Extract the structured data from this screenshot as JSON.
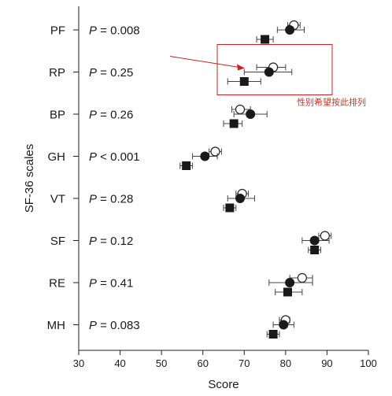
{
  "chart_data": {
    "type": "scatter",
    "xlabel": "Score",
    "ylabel": "SF-36 scales",
    "xlim": [
      30,
      100
    ],
    "xticks": [
      "30",
      "40",
      "50",
      "60",
      "70",
      "80",
      "90",
      "100"
    ],
    "categories": [
      "PF",
      "RP",
      "BP",
      "GH",
      "VT",
      "SF",
      "RE",
      "MH"
    ],
    "p_values": [
      "P = 0.008",
      "P = 0.25",
      "P = 0.26",
      "P < 0.001",
      "P = 0.28",
      "P = 0.12",
      "P = 0.41",
      "P = 0.083"
    ],
    "series": [
      {
        "marker": "open-circle",
        "values": [
          82,
          77,
          69,
          63,
          69.5,
          89.5,
          84,
          80
        ],
        "ci_low": [
          80.5,
          73,
          67,
          61.5,
          68,
          88,
          81,
          78.5
        ],
        "ci_high": [
          83.5,
          80,
          71.5,
          64.5,
          71,
          91,
          86.5,
          81
        ]
      },
      {
        "marker": "filled-circle",
        "values": [
          81,
          76,
          71.5,
          60.5,
          69,
          87,
          81,
          79.5
        ],
        "ci_low": [
          78,
          70,
          67.5,
          57.5,
          66,
          84,
          76,
          77
        ],
        "ci_high": [
          84.5,
          81.5,
          75.5,
          63.5,
          72.5,
          90.5,
          86.5,
          82
        ]
      },
      {
        "marker": "filled-square",
        "values": [
          75,
          70,
          67.5,
          56,
          66.5,
          87,
          80.5,
          77
        ],
        "ci_low": [
          73,
          66,
          65,
          54.5,
          65,
          85.5,
          77.5,
          75.5
        ],
        "ci_high": [
          77,
          74,
          69.5,
          57.5,
          68,
          88.5,
          84,
          78.5
        ]
      }
    ],
    "annotation": {
      "text": "性别希望按此排列",
      "color": "#cc2222"
    }
  }
}
